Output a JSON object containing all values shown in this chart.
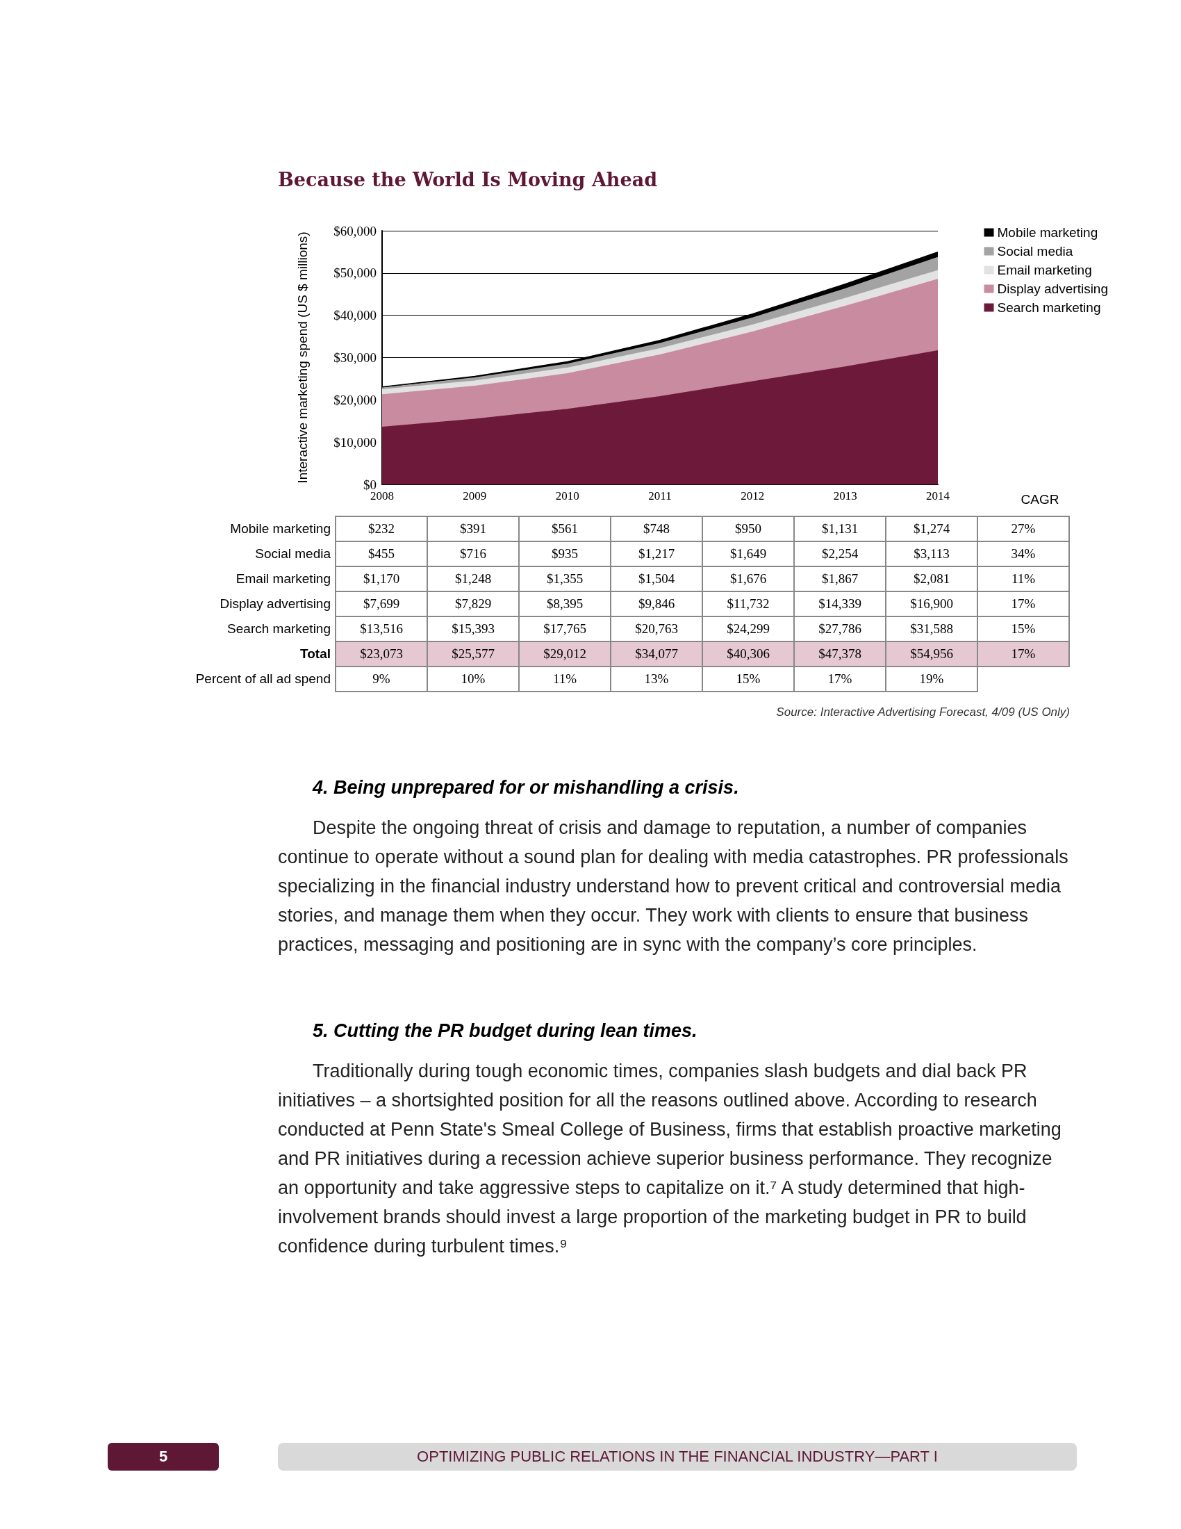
{
  "chart_data": {
    "type": "area",
    "stacked": true,
    "title": "Because the World Is Moving Ahead",
    "ylabel": "Interactive marketing spend (US $ millions)",
    "categories": [
      "2008",
      "2009",
      "2010",
      "2011",
      "2012",
      "2013",
      "2014"
    ],
    "series": [
      {
        "name": "Search marketing",
        "color": "#6d1a3a",
        "values": [
          13516,
          15393,
          17765,
          20763,
          24299,
          27786,
          31588
        ],
        "value_labels": [
          "$13,516",
          "$15,393",
          "$17,765",
          "$20,763",
          "$24,299",
          "$27,786",
          "$31,588"
        ]
      },
      {
        "name": "Display advertising",
        "color": "#c98ba0",
        "values": [
          7699,
          7829,
          8395,
          9846,
          11732,
          14339,
          16900
        ],
        "value_labels": [
          "$7,699",
          "$7,829",
          "$8,395",
          "$9,846",
          "$11,732",
          "$14,339",
          "$16,900"
        ]
      },
      {
        "name": "Email marketing",
        "color": "#e2e2e2",
        "values": [
          1170,
          1248,
          1355,
          1504,
          1676,
          1867,
          2081
        ],
        "value_labels": [
          "$1,170",
          "$1,248",
          "$1,355",
          "$1,504",
          "$1,676",
          "$1,867",
          "$2,081"
        ]
      },
      {
        "name": "Social media",
        "color": "#a3a3a3",
        "values": [
          455,
          716,
          935,
          1217,
          1649,
          2254,
          3113
        ],
        "value_labels": [
          "$455",
          "$716",
          "$935",
          "$1,217",
          "$1,649",
          "$2,254",
          "$3,113"
        ]
      },
      {
        "name": "Mobile marketing",
        "color": "#000000",
        "values": [
          232,
          391,
          561,
          748,
          950,
          1131,
          1274
        ],
        "value_labels": [
          "$232",
          "$391",
          "$561",
          "$748",
          "$950",
          "$1,131",
          "$1,274"
        ]
      }
    ],
    "ylim": [
      0,
      60000
    ],
    "yticks": [
      {
        "value": 0,
        "label": "$0"
      },
      {
        "value": 10000,
        "label": "$10,000"
      },
      {
        "value": 20000,
        "label": "$20,000"
      },
      {
        "value": 30000,
        "label": "$30,000"
      },
      {
        "value": 40000,
        "label": "$40,000"
      },
      {
        "value": 50000,
        "label": "$50,000"
      },
      {
        "value": 60000,
        "label": "$60,000"
      }
    ],
    "grid": "y",
    "legend": "right",
    "marker": "none",
    "annotations": [
      "CAGR",
      "15%",
      "17%",
      "11%",
      "34%",
      "27%",
      "17%",
      "Total",
      "$23,073",
      "$25,577",
      "$29,012",
      "$34,077",
      "$40,306",
      "$47,378",
      "$54,956",
      "Percent of all ad spend",
      "9%",
      "10%",
      "11%",
      "13%",
      "15%",
      "17%",
      "19%",
      "Source: Interactive Advertising Forecast, 4/09 (US Only)",
      "4. Being unprepared for or mishandling a crisis.",
      "Despite the ongoing threat of crisis and damage to reputation, a number of companies continue to operate without a sound plan for dealing with media catastrophes. PR professionals specializing in the financial industry understand how to prevent critical and controversial media stories, and manage them when they occur. They work with clients to ensure that business practices, messaging and positioning are in sync with the company’s core principles.",
      "5. Cutting the PR budget during lean times.",
      "Traditionally during tough economic times, companies slash budgets and dial back PR initiatives – a shortsighted position for all the reasons outlined above. According to research conducted at Penn State's Smeal College of Business, firms that establish proactive marketing and PR initiatives during a recession achieve superior business performance. They recognize an opportunity and take aggressive steps to capitalize on it.⁷ A study determined that high-involvement brands should invest a large proportion of the marketing budget in PR to build confidence during turbulent times.⁹",
      "OPTIMIZING PUBLIC RELATIONS IN THE FINANCIAL INDUSTRY—PART I",
      "5"
    ]
  }
}
